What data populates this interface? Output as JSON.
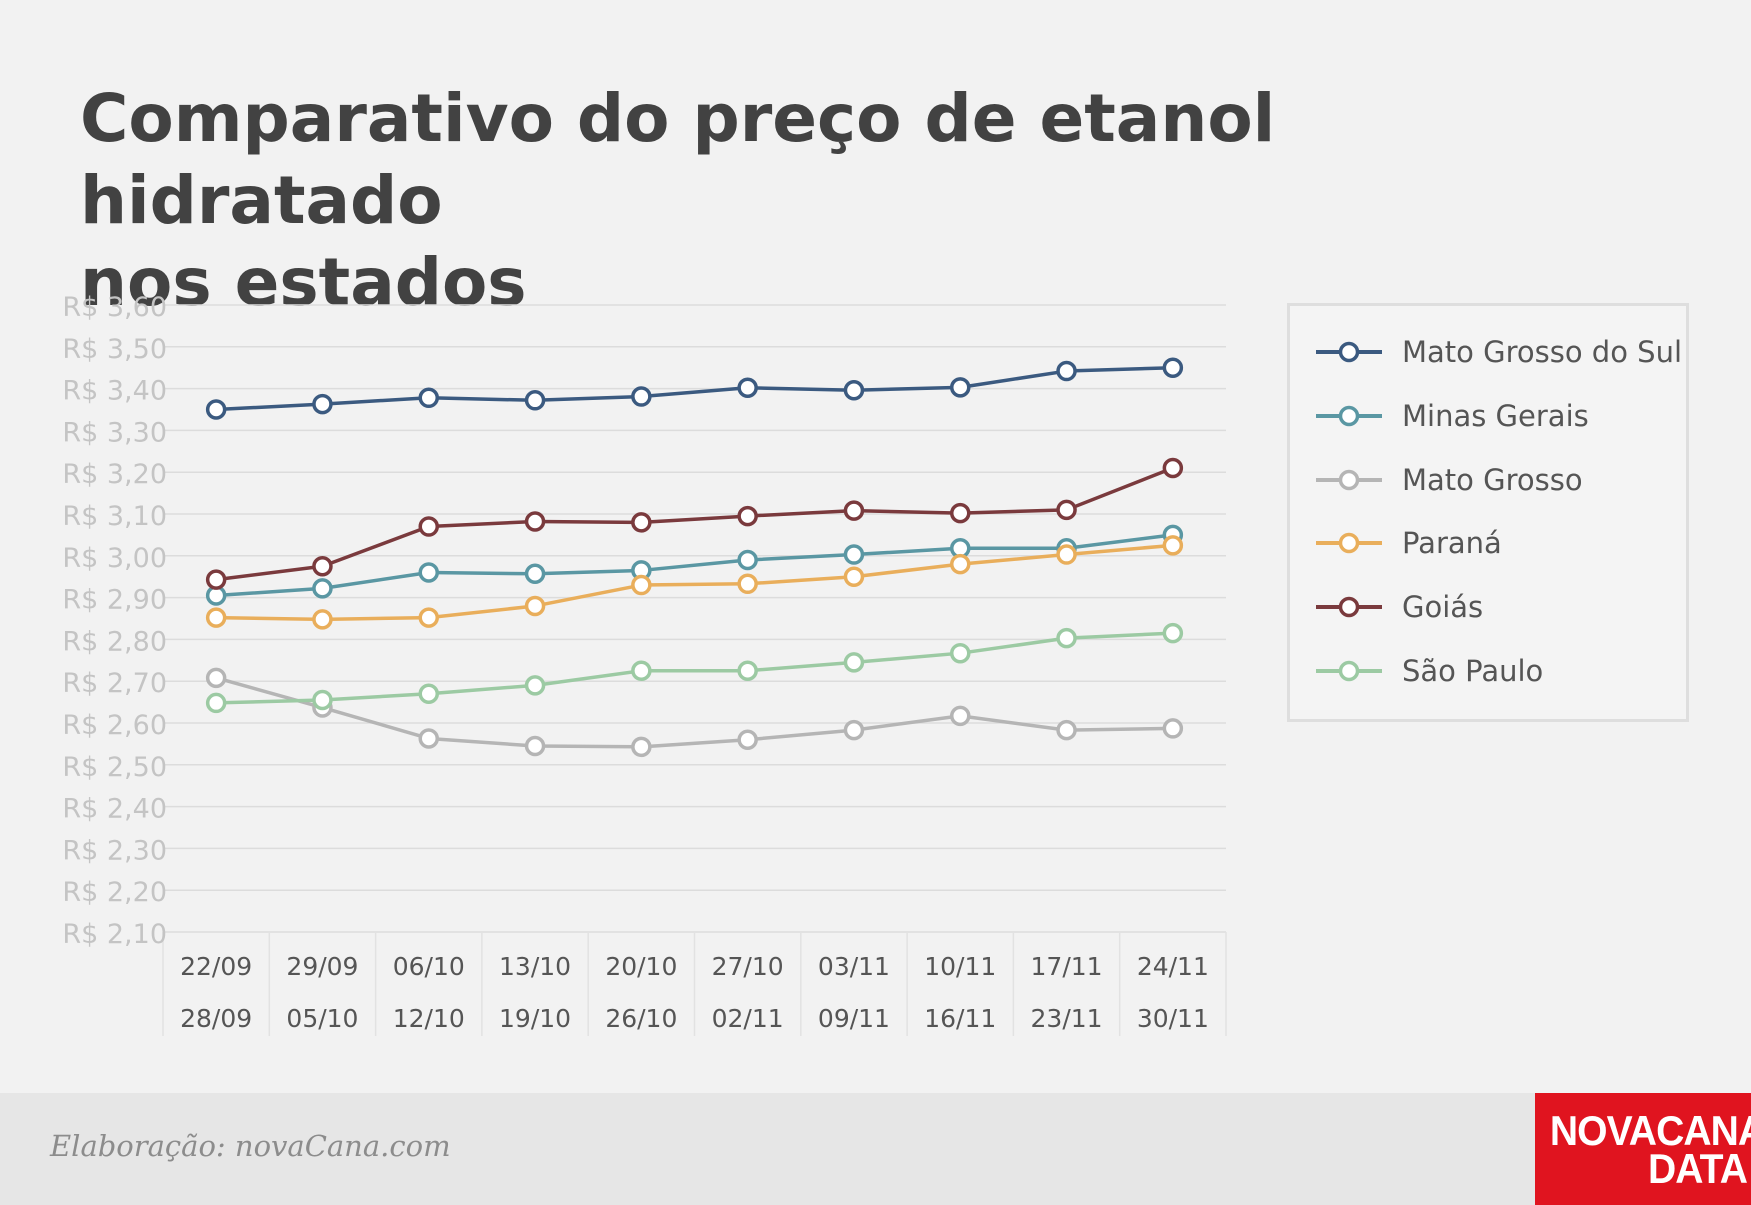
{
  "title_lines": [
    "Comparativo do preço de etanol hidratado",
    "nos estados"
  ],
  "credit": "Elaboração: novaCana.com",
  "logo": {
    "line1": "NOVACANA",
    "line2": "DATA",
    "color": "#e0141f"
  },
  "chart_data": {
    "type": "line",
    "title": "Comparativo do preço de etanol hidratado nos estados",
    "xlabel": "",
    "ylabel": "",
    "ylim": [
      2.1,
      3.6
    ],
    "ytick_labels": [
      "R$ 3,60",
      "R$ 3,50",
      "R$ 3,40",
      "R$ 3,30",
      "R$ 3,20",
      "R$ 3,10",
      "R$ 3,00",
      "R$ 2,90",
      "R$ 2,80",
      "R$ 2,70",
      "R$ 2,60",
      "R$ 2,50",
      "R$ 2,40",
      "R$ 2,30",
      "R$ 2,20",
      "R$ 2,10"
    ],
    "ytick_values": [
      3.6,
      3.5,
      3.4,
      3.3,
      3.2,
      3.1,
      3.0,
      2.9,
      2.8,
      2.7,
      2.6,
      2.5,
      2.4,
      2.3,
      2.2,
      2.1
    ],
    "categories": [
      {
        "start": "22/09",
        "end": "28/09"
      },
      {
        "start": "29/09",
        "end": "05/10"
      },
      {
        "start": "06/10",
        "end": "12/10"
      },
      {
        "start": "13/10",
        "end": "19/10"
      },
      {
        "start": "20/10",
        "end": "26/10"
      },
      {
        "start": "27/10",
        "end": "02/11"
      },
      {
        "start": "03/11",
        "end": "09/11"
      },
      {
        "start": "10/11",
        "end": "16/11"
      },
      {
        "start": "17/11",
        "end": "23/11"
      },
      {
        "start": "24/11",
        "end": "30/11"
      }
    ],
    "grid": true,
    "legend_position": "right",
    "series": [
      {
        "name": "Mato Grosso do Sul",
        "color": "#3b5a80",
        "values": [
          3.35,
          3.363,
          3.378,
          3.372,
          3.381,
          3.402,
          3.396,
          3.403,
          3.442,
          3.45
        ]
      },
      {
        "name": "Minas Gerais",
        "color": "#5a97a3",
        "values": [
          2.905,
          2.922,
          2.96,
          2.957,
          2.965,
          2.99,
          3.003,
          3.018,
          3.018,
          3.05
        ]
      },
      {
        "name": "Mato Grosso",
        "color": "#b5b5b5",
        "values": [
          2.708,
          2.637,
          2.563,
          2.545,
          2.543,
          2.56,
          2.583,
          2.617,
          2.583,
          2.587
        ]
      },
      {
        "name": "Paraná",
        "color": "#e9ae5b",
        "values": [
          2.852,
          2.848,
          2.852,
          2.88,
          2.93,
          2.933,
          2.95,
          2.98,
          3.003,
          3.025
        ]
      },
      {
        "name": "Goiás",
        "color": "#7a3a3d",
        "values": [
          2.943,
          2.975,
          3.07,
          3.082,
          3.08,
          3.095,
          3.108,
          3.102,
          3.11,
          3.21
        ]
      },
      {
        "name": "São Paulo",
        "color": "#9ccaa3",
        "values": [
          2.648,
          2.655,
          2.67,
          2.69,
          2.725,
          2.725,
          2.745,
          2.767,
          2.803,
          2.815
        ]
      }
    ]
  }
}
